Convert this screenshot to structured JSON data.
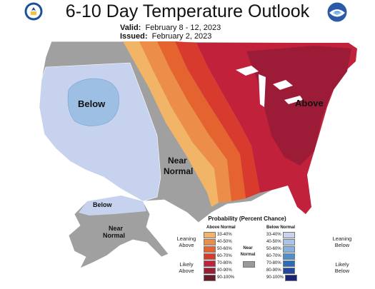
{
  "title": "6-10 Day Temperature Outlook",
  "valid_label": "Valid:",
  "valid_dates": "February 8 - 12, 2023",
  "issued_label": "Issued:",
  "issued_date": "February 2, 2023",
  "noaa_text": "noaa",
  "map_labels": {
    "below": "Below",
    "near_line1": "Near",
    "near_line2": "Normal",
    "above": "Above",
    "alaska_below": "Below",
    "alaska_near_line1": "Near",
    "alaska_near_line2": "Normal"
  },
  "legend": {
    "title": "Probability (Percent Chance)",
    "above_header": "Above Normal",
    "below_header": "Below Normal",
    "near_header_line1": "Near",
    "near_header_line2": "Normal",
    "leaning_above": "Leaning\nAbove",
    "likely_above": "Likely\nAbove",
    "leaning_below": "Leaning\nBelow",
    "likely_below": "Likely\nBelow",
    "above_bins": [
      {
        "label": "33-40%",
        "color": "#f2b466"
      },
      {
        "label": "40-50%",
        "color": "#ec8d4a"
      },
      {
        "label": "50-60%",
        "color": "#e5632f"
      },
      {
        "label": "60-70%",
        "color": "#d93a2e"
      },
      {
        "label": "70-80%",
        "color": "#c1213a"
      },
      {
        "label": "80-90%",
        "color": "#9c1c37"
      },
      {
        "label": "90-100%",
        "color": "#6b1a2a"
      }
    ],
    "below_bins": [
      {
        "label": "33-40%",
        "color": "#c8d3ee"
      },
      {
        "label": "40-50%",
        "color": "#a9c4e8"
      },
      {
        "label": "50-60%",
        "color": "#86b2e0"
      },
      {
        "label": "60-70%",
        "color": "#4f8fd0"
      },
      {
        "label": "70-80%",
        "color": "#2c6bb8"
      },
      {
        "label": "80-90%",
        "color": "#2247a0"
      },
      {
        "label": "90-100%",
        "color": "#1a2375"
      }
    ],
    "near_color": "#9a9a9a"
  },
  "colors": {
    "near": "#a0a0a0",
    "below_lean": "#c6d2ee",
    "below_mid": "#9dbfe4"
  }
}
